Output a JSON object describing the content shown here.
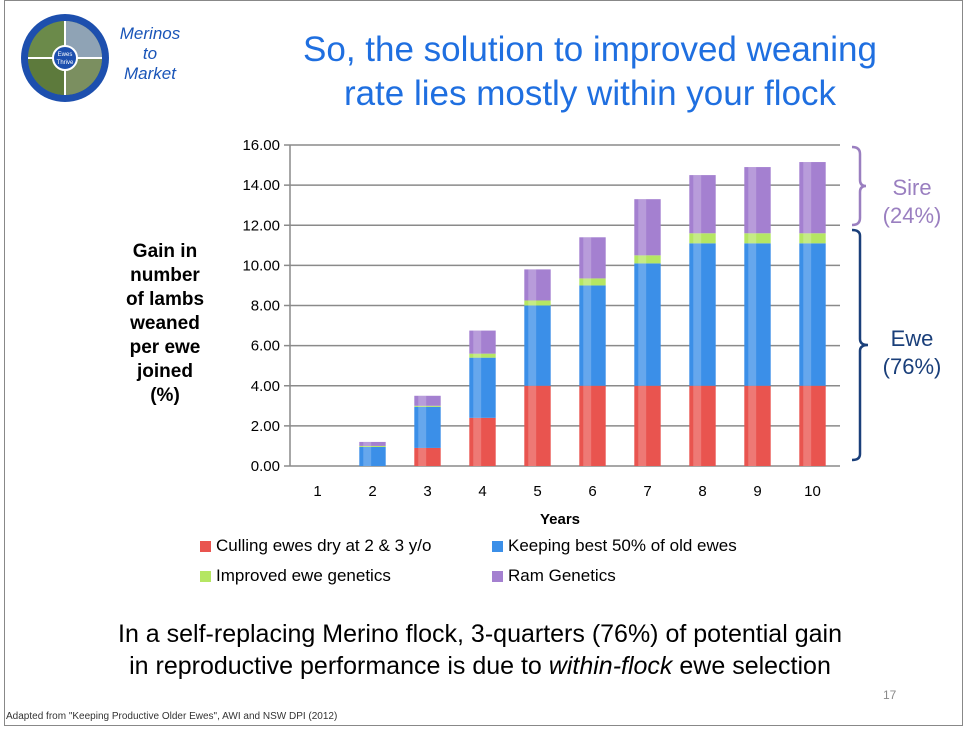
{
  "logo": {
    "ring_text": [
      "Ewes",
      "Thrive"
    ],
    "text_lines": [
      "Merinos",
      "to",
      "Market"
    ]
  },
  "title": {
    "line1": "So, the solution to improved weaning",
    "line2": "rate lies mostly within your flock"
  },
  "annotations": {
    "sire": {
      "line1": "Sire",
      "line2": "(24%)",
      "color": "#9a7fc0"
    },
    "ewe": {
      "line1": "Ewe",
      "line2": "(76%)",
      "color": "#1a3f7a"
    }
  },
  "body_text": {
    "line1": "In a self-replacing Merino flock, 3-quarters (76%) of potential gain",
    "line2_pre": "in reproductive performance is due to ",
    "line2_em": "within-flock",
    "line2_post": " ewe selection"
  },
  "page_number": "17",
  "footer": "Adapted from \"Keeping Productive Older Ewes\", AWI and NSW DPI  (2012)",
  "chart_data": {
    "type": "bar",
    "stacked": true,
    "categories": [
      "1",
      "2",
      "3",
      "4",
      "5",
      "6",
      "7",
      "8",
      "9",
      "10"
    ],
    "xlabel": "Years",
    "ylabel_lines": [
      "Gain in",
      "number",
      "of lambs",
      "weaned",
      "per ewe",
      "joined",
      "(%)"
    ],
    "ylim": [
      0,
      16
    ],
    "yticks": [
      "0.00",
      "2.00",
      "4.00",
      "6.00",
      "8.00",
      "10.00",
      "12.00",
      "14.00",
      "16.00"
    ],
    "grid": true,
    "legend_position": "bottom",
    "series": [
      {
        "name": "Culling ewes dry at 2 & 3 y/o",
        "color": "#e9544f",
        "values": [
          0,
          0,
          0.9,
          2.4,
          4.0,
          4.0,
          4.0,
          4.0,
          4.0,
          4.0
        ]
      },
      {
        "name": "Keeping best 50% of old ewes",
        "color": "#3b8fe8",
        "values": [
          0,
          0.95,
          2.05,
          3.0,
          4.0,
          5.0,
          6.1,
          7.1,
          7.1,
          7.1
        ]
      },
      {
        "name": "Improved ewe genetics",
        "color": "#b5e663",
        "values": [
          0,
          0.05,
          0.05,
          0.2,
          0.25,
          0.35,
          0.4,
          0.5,
          0.5,
          0.5
        ]
      },
      {
        "name": "Ram Genetics",
        "color": "#a480d0",
        "values": [
          0,
          0.2,
          0.5,
          1.15,
          1.55,
          2.05,
          2.8,
          2.9,
          3.3,
          3.55
        ]
      }
    ]
  }
}
